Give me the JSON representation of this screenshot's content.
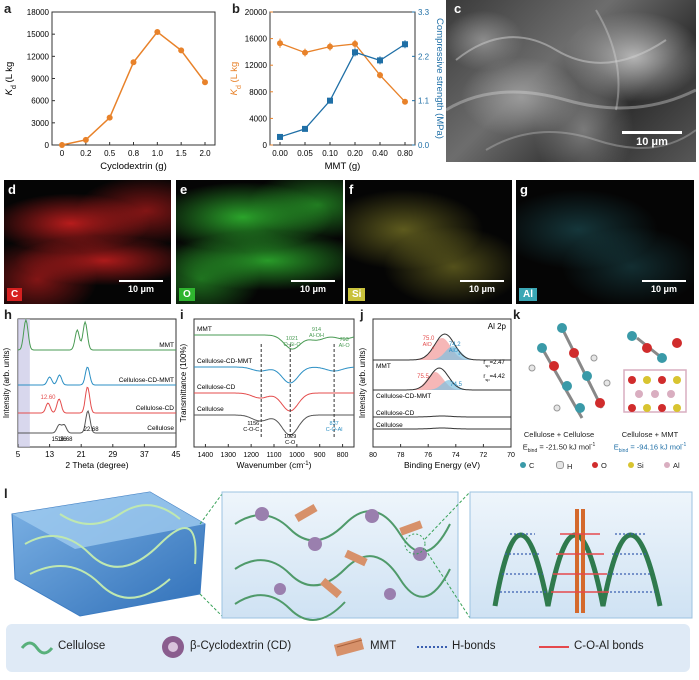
{
  "panels": {
    "a": {
      "label": "a"
    },
    "b": {
      "label": "b"
    },
    "c": {
      "label": "c",
      "scale": "10 μm"
    },
    "d": {
      "label": "d",
      "element": "C",
      "scale": "10 μm",
      "color": "#d62020"
    },
    "e": {
      "label": "e",
      "element": "O",
      "scale": "10 μm",
      "color": "#2fb52f"
    },
    "f": {
      "label": "f",
      "element": "Si",
      "scale": "10 μm",
      "color": "#c9c23c"
    },
    "g": {
      "label": "g",
      "element": "Al",
      "scale": "10 μm",
      "color": "#3aa7b5"
    },
    "h": {
      "label": "h"
    },
    "i": {
      "label": "i"
    },
    "j": {
      "label": "j"
    },
    "k": {
      "label": "k"
    },
    "l": {
      "label": "l"
    }
  },
  "chart_data": [
    {
      "id": "a",
      "type": "line",
      "xlabel": "Cyclodextrin (g)",
      "ylabel_main": "K",
      "ylabel_sub": "d",
      "ylabel_rest": " (L kg",
      "categories": [
        "0",
        "0.2",
        "0.5",
        "0.8",
        "1.0",
        "1.5",
        "2.0"
      ],
      "values": [
        0,
        700,
        3700,
        11200,
        15300,
        12800,
        8500
      ],
      "ylim": [
        0,
        18000
      ],
      "yticks": [
        "0",
        "3000",
        "6000",
        "9000",
        "12000",
        "15000",
        "18000"
      ],
      "color": "#e8822a"
    },
    {
      "id": "b",
      "type": "line",
      "xlabel": "MMT (g)",
      "categories": [
        "0.00",
        "0.05",
        "0.10",
        "0.20",
        "0.40",
        "0.80"
      ],
      "series": [
        {
          "axis": "left",
          "values": [
            15300,
            13900,
            14800,
            15200,
            10500,
            6500
          ],
          "errors": [
            700,
            600,
            600,
            600,
            500,
            400
          ],
          "color": "#e8822a"
        },
        {
          "axis": "right",
          "values": [
            0.2,
            0.4,
            1.1,
            2.3,
            2.1,
            2.5
          ],
          "errors": [
            0.03,
            0.04,
            0.05,
            0.1,
            0.1,
            0.1
          ],
          "color": "#1f6fa6"
        }
      ],
      "ylim_left": [
        0,
        20000
      ],
      "yticks_left": [
        "0",
        "4000",
        "8000",
        "12000",
        "16000",
        "20000"
      ],
      "ylim_right": [
        0,
        3.3
      ],
      "yticks_right": [
        "0.0",
        "1.1",
        "2.2",
        "3.3"
      ],
      "ylabel_right": "Compressive strength  (MPa)"
    },
    {
      "id": "h",
      "type": "line",
      "xlabel": "2 Theta (degree)",
      "ylabel": "Intensity (arb. units)",
      "xticks": [
        "5",
        "13",
        "21",
        "29",
        "37",
        "45"
      ],
      "series_names": [
        "MMT",
        "Cellulose-CD-MMT",
        "Cellulose-CD",
        "Cellulose"
      ],
      "annotations": [
        "12.60",
        "15.36",
        "16.68",
        "22.68"
      ]
    },
    {
      "id": "i",
      "type": "line",
      "xlabel": "Wavenumber (cm",
      "ylabel": "Transmittance (100%)",
      "xticks": [
        "1400",
        "1300",
        "1200",
        "1100",
        "1000",
        "900",
        "800"
      ],
      "series_names": [
        "MMT",
        "Cellulose-CD-MMT",
        "Cellulose-CD",
        "Cellulose"
      ],
      "annotations": [
        "914",
        "Al-OH",
        "1021",
        "O-Si-O",
        "793",
        "Al-O",
        "1156",
        "C-O-C",
        "1029",
        "C-O",
        "837",
        "C-O-Al"
      ]
    },
    {
      "id": "j",
      "type": "line",
      "xlabel": "Binding Energy (eV)",
      "ylabel": "Intensity (arb. units)",
      "title": "Al 2p",
      "xticks": [
        "80",
        "78",
        "76",
        "74",
        "72",
        "70"
      ],
      "series_names": [
        "MMT",
        "Cellulose-CD-MMT",
        "Cellulose-CD",
        "Cellulose"
      ],
      "annotations": [
        "75.0",
        "AlO",
        "74.2",
        "AlO",
        "r",
        "=2.47",
        "75.5",
        "74.5",
        "=4.42"
      ]
    }
  ],
  "k": {
    "left_title": "Cellulose + Cellulose",
    "left_energy": "E",
    "left_energy_value": "= -21.50 kJ mol",
    "right_title": "Cellulose + MMT",
    "right_energy_value": "= -94.16 kJ mol",
    "atoms": [
      "C",
      "H",
      "O",
      "Si",
      "Al"
    ],
    "atom_colors": [
      "#3a9aa8",
      "#e6e6e6",
      "#d02c2c",
      "#d8c430",
      "#d9aec0"
    ]
  },
  "legend": {
    "cellulose": "Cellulose",
    "cd": "β-Cyclodextrin (CD)",
    "mmt": "MMT",
    "hbonds": "H-bonds",
    "coal": "C-O-Al bonds"
  }
}
